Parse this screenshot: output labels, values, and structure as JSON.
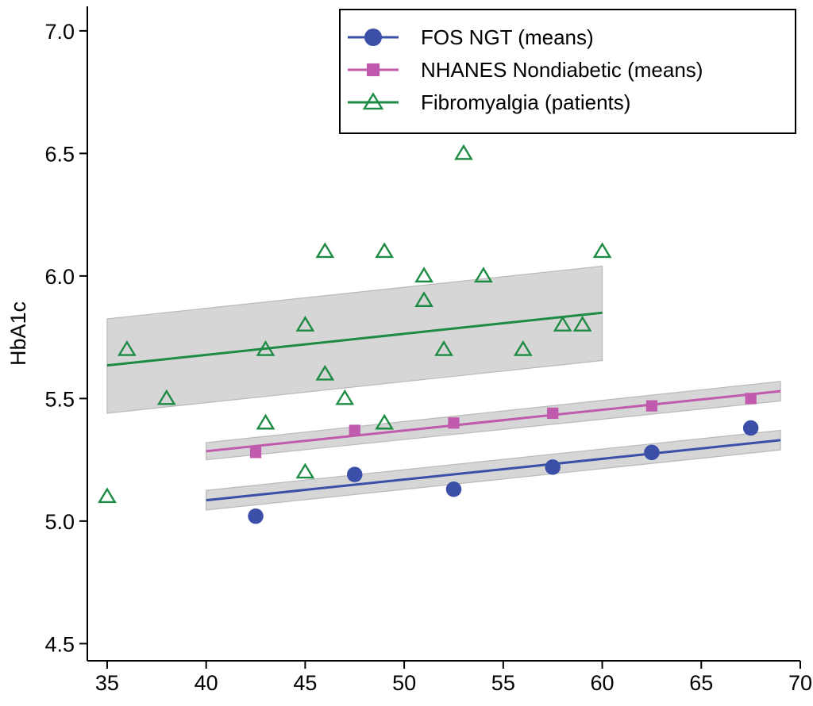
{
  "chart_data": {
    "type": "scatter",
    "title": "",
    "xlabel": "",
    "ylabel": "HbA1c",
    "xlim": [
      34,
      70
    ],
    "ylim": [
      4.43,
      7.1
    ],
    "xticks": [
      35,
      40,
      45,
      50,
      55,
      60,
      65,
      70
    ],
    "yticks": [
      4.5,
      5.0,
      5.5,
      6.0,
      6.5,
      7.0
    ],
    "ytick_labels": [
      "4.5",
      "5.0",
      "5.5",
      "6.0",
      "6.5",
      "7.0"
    ],
    "grid": false,
    "legend_position": "top-right",
    "series": [
      {
        "name": "FOS NGT (means)",
        "marker": "circle",
        "color": "#3b4fa8",
        "points": [
          [
            42.5,
            5.02
          ],
          [
            47.5,
            5.19
          ],
          [
            52.5,
            5.13
          ],
          [
            57.5,
            5.22
          ],
          [
            62.5,
            5.28
          ],
          [
            67.5,
            5.38
          ]
        ],
        "fit": {
          "x": [
            40,
            69
          ],
          "y": [
            5.085,
            5.33
          ]
        },
        "ci": {
          "x": [
            40,
            69
          ],
          "upper": [
            5.125,
            5.37
          ],
          "lower": [
            5.045,
            5.29
          ]
        }
      },
      {
        "name": "NHANES Nondiabetic (means)",
        "marker": "square",
        "color": "#c05aac",
        "points": [
          [
            42.5,
            5.28
          ],
          [
            47.5,
            5.37
          ],
          [
            52.5,
            5.4
          ],
          [
            57.5,
            5.44
          ],
          [
            62.5,
            5.47
          ],
          [
            67.5,
            5.5
          ]
        ],
        "fit": {
          "x": [
            40,
            69
          ],
          "y": [
            5.285,
            5.53
          ]
        },
        "ci": {
          "x": [
            40,
            69
          ],
          "upper": [
            5.32,
            5.57
          ],
          "lower": [
            5.25,
            5.49
          ]
        }
      },
      {
        "name": "Fibromyalgia (patients)",
        "marker": "triangle-open",
        "color": "#1e8b45",
        "points": [
          [
            35,
            5.1
          ],
          [
            36,
            5.7
          ],
          [
            38,
            5.5
          ],
          [
            43,
            5.4
          ],
          [
            43,
            5.7
          ],
          [
            45,
            5.2
          ],
          [
            45,
            5.8
          ],
          [
            46,
            5.6
          ],
          [
            46,
            6.1
          ],
          [
            47,
            5.5
          ],
          [
            49,
            5.4
          ],
          [
            49,
            6.1
          ],
          [
            51,
            5.9
          ],
          [
            51,
            6.0
          ],
          [
            52,
            5.7
          ],
          [
            53,
            6.5
          ],
          [
            54,
            6.0
          ],
          [
            56,
            5.7
          ],
          [
            58,
            5.8
          ],
          [
            59,
            5.8
          ],
          [
            60,
            6.1
          ]
        ],
        "fit": {
          "x": [
            35,
            60
          ],
          "y": [
            5.635,
            5.85
          ]
        },
        "ci": {
          "x": [
            35,
            60
          ],
          "upper": [
            5.825,
            6.04
          ],
          "lower": [
            5.44,
            5.655
          ]
        }
      }
    ]
  }
}
